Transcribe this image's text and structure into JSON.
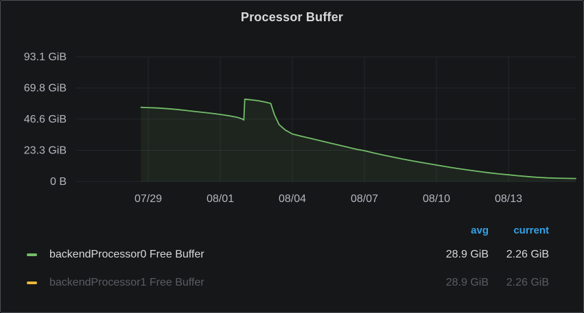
{
  "panel": {
    "title": "Processor Buffer"
  },
  "colors": {
    "series_green": "#73bf69",
    "series_yellow": "#eab839",
    "legend_header_blue": "#33a2e5",
    "panel_background": "#161719",
    "grid_line": "#25272b",
    "axis_text": "#b2b8be",
    "dimmed_text": "#585d63"
  },
  "chart_data": {
    "type": "area",
    "title": "Processor Buffer",
    "xlabel": "",
    "ylabel": "",
    "grid": true,
    "legend_position": "bottom",
    "x_unit": "days since 07/28",
    "x_range": [
      -2,
      18.8
    ],
    "y_range": [
      0,
      93.1
    ],
    "y_unit": "GiB",
    "y_ticks": [
      {
        "v": 0,
        "label": "0 B"
      },
      {
        "v": 23.3,
        "label": "23.3 GiB"
      },
      {
        "v": 46.6,
        "label": "46.6 GiB"
      },
      {
        "v": 69.8,
        "label": "69.8 GiB"
      },
      {
        "v": 93.1,
        "label": "93.1 GiB"
      }
    ],
    "x_ticks": [
      {
        "t": 1,
        "label": "07/29"
      },
      {
        "t": 4,
        "label": "08/01"
      },
      {
        "t": 7,
        "label": "08/04"
      },
      {
        "t": 10,
        "label": "08/07"
      },
      {
        "t": 13,
        "label": "08/10"
      },
      {
        "t": 16,
        "label": "08/13"
      }
    ],
    "series": [
      {
        "name": "backendProcessor0 Free Buffer",
        "color": "#73bf69",
        "visible": true,
        "fill_opacity": 0.09,
        "points": [
          [
            0.7,
            55.4
          ],
          [
            1.0,
            55.2
          ],
          [
            1.4,
            54.9
          ],
          [
            1.8,
            54.4
          ],
          [
            2.2,
            53.8
          ],
          [
            2.6,
            53.0
          ],
          [
            3.0,
            52.2
          ],
          [
            3.4,
            51.4
          ],
          [
            3.8,
            50.6
          ],
          [
            4.1,
            49.8
          ],
          [
            4.4,
            49.0
          ],
          [
            4.7,
            48.0
          ],
          [
            4.9,
            46.8
          ],
          [
            4.98,
            45.9
          ],
          [
            5.02,
            61.5
          ],
          [
            5.3,
            61.0
          ],
          [
            5.6,
            60.3
          ],
          [
            5.9,
            59.2
          ],
          [
            6.1,
            58.3
          ],
          [
            6.25,
            50.0
          ],
          [
            6.45,
            42.5
          ],
          [
            6.7,
            38.5
          ],
          [
            7.0,
            35.5
          ],
          [
            7.4,
            33.7
          ],
          [
            7.8,
            32.0
          ],
          [
            8.2,
            30.3
          ],
          [
            8.6,
            28.6
          ],
          [
            9.0,
            26.9
          ],
          [
            9.4,
            25.2
          ],
          [
            9.7,
            24.0
          ],
          [
            10.0,
            23.0
          ],
          [
            10.4,
            21.3
          ],
          [
            10.8,
            19.7
          ],
          [
            11.2,
            18.2
          ],
          [
            11.6,
            16.8
          ],
          [
            12.0,
            15.4
          ],
          [
            12.4,
            14.1
          ],
          [
            12.8,
            12.9
          ],
          [
            13.2,
            11.7
          ],
          [
            13.6,
            10.5
          ],
          [
            14.0,
            9.4
          ],
          [
            14.4,
            8.4
          ],
          [
            14.8,
            7.4
          ],
          [
            15.2,
            6.5
          ],
          [
            15.6,
            5.7
          ],
          [
            16.0,
            5.0
          ],
          [
            16.4,
            4.3
          ],
          [
            16.8,
            3.7
          ],
          [
            17.2,
            3.1
          ],
          [
            17.6,
            2.7
          ],
          [
            18.0,
            2.5
          ],
          [
            18.4,
            2.35
          ],
          [
            18.8,
            2.26
          ]
        ]
      },
      {
        "name": "backendProcessor1 Free Buffer",
        "color": "#eab839",
        "visible": false,
        "points": []
      }
    ]
  },
  "legend": {
    "columns": [
      "avg",
      "current"
    ],
    "rows": [
      {
        "label": "backendProcessor0 Free Buffer",
        "color": "#73bf69",
        "avg": "28.9 GiB",
        "current": "2.26 GiB",
        "dimmed": false
      },
      {
        "label": "backendProcessor1 Free Buffer",
        "color": "#eab839",
        "avg": "28.9 GiB",
        "current": "2.26 GiB",
        "dimmed": true
      }
    ]
  }
}
